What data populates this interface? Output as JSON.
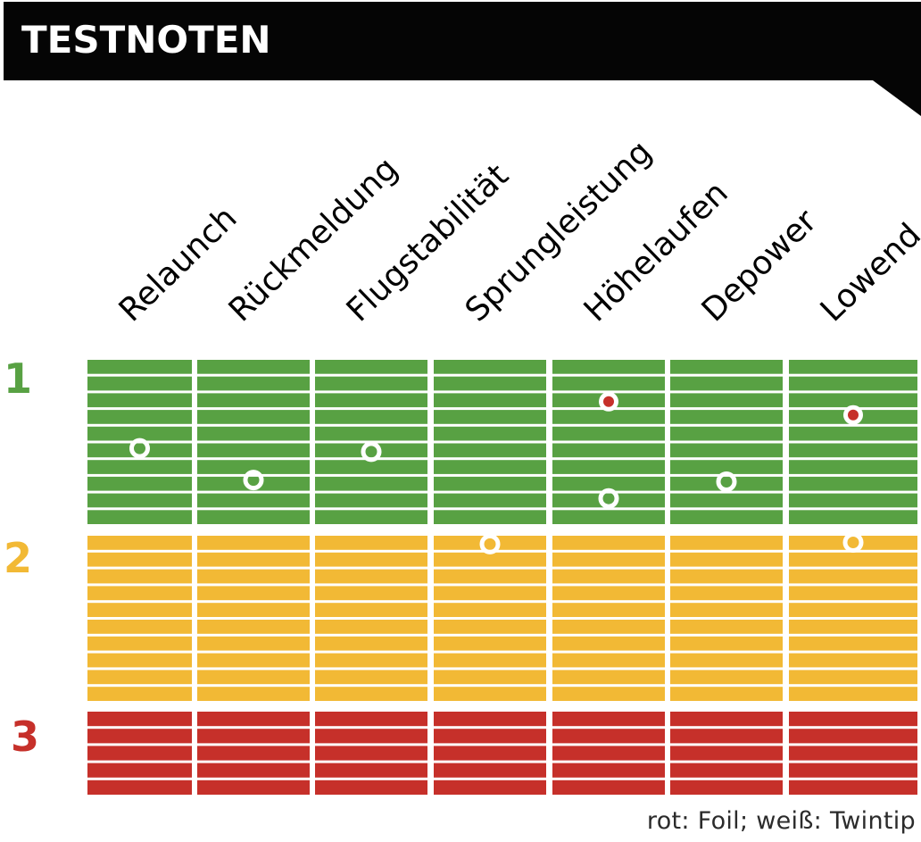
{
  "header": {
    "title": "TESTNOTEN"
  },
  "footer": {
    "note": "rot: Foil; weiß: Twintip"
  },
  "chart_data": {
    "type": "scatter",
    "title": "TESTNOTEN",
    "categories": [
      "Relaunch",
      "Rückmeldung",
      "Flugstabilität",
      "Sprungleistung",
      "Höhelaufen",
      "Depower",
      "Lowend"
    ],
    "grades": [
      {
        "label": "1",
        "color": "#58a143"
      },
      {
        "label": "2",
        "color": "#f2b935"
      },
      {
        "label": "3",
        "color": "#c6302a"
      }
    ],
    "ylim": [
      1,
      3.5
    ],
    "y_direction": "1 at top, worse grades downward",
    "series": [
      {
        "name": "Twintip",
        "marker": "white ring",
        "color": "#ffffff",
        "values": [
          1.53,
          1.72,
          1.55,
          2.05,
          1.83,
          1.73,
          2.04
        ]
      },
      {
        "name": "Foil",
        "marker": "red dot",
        "color": "#c6302a",
        "points": [
          {
            "category": "Höhelaufen",
            "value": 1.25
          },
          {
            "category": "Lowend",
            "value": 1.33
          }
        ]
      }
    ],
    "legend": "bottom-right text note"
  }
}
